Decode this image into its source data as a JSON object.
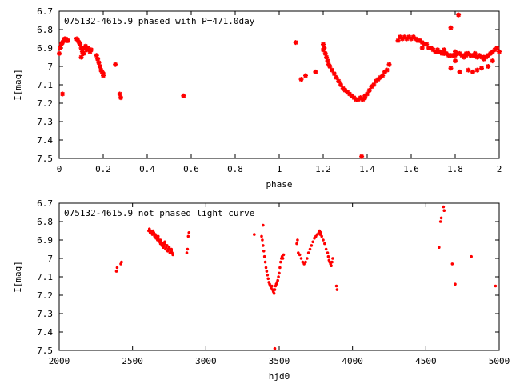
{
  "colors": {
    "points": "#ff0000",
    "axes": "#000000",
    "background": "#ffffff"
  },
  "chart_data": [
    {
      "type": "scatter",
      "title": "075132-4615.9 phased with P=471.0day",
      "xlabel": "phase",
      "ylabel": "I[mag]",
      "xlim": [
        0,
        2
      ],
      "ylim": [
        6.7,
        7.5
      ],
      "y_inverted": true,
      "grid": false,
      "x_ticks": [
        "0",
        "0.2",
        "0.4",
        "0.6",
        "0.8",
        "1",
        "1.2",
        "1.4",
        "1.6",
        "1.8",
        "2"
      ],
      "y_ticks": [
        "6.7",
        "6.8",
        "6.9",
        "7",
        "7.1",
        "7.2",
        "7.3",
        "7.4",
        "7.5"
      ],
      "marker": "star",
      "series": [
        {
          "x": [
            0.0,
            0.005,
            0.01,
            0.015,
            0.02,
            0.025,
            0.03,
            0.035,
            0.04,
            0.015,
            0.08,
            0.085,
            0.09,
            0.095,
            0.1,
            0.105,
            0.11,
            0.115,
            0.12,
            0.13,
            0.14,
            0.1,
            0.11,
            0.125,
            0.145,
            0.17,
            0.175,
            0.18,
            0.185,
            0.19,
            0.195,
            0.2,
            0.2,
            0.255,
            0.275,
            0.28,
            0.565,
            1.075,
            1.1,
            1.12,
            1.165,
            1.2,
            1.2,
            1.205,
            1.21,
            1.215,
            1.22,
            1.225,
            1.23,
            1.24,
            1.25,
            1.26,
            1.27,
            1.28,
            1.29,
            1.3,
            1.31,
            1.32,
            1.33,
            1.34,
            1.35,
            1.36,
            1.37,
            1.38,
            1.39,
            1.4,
            1.41,
            1.42,
            1.43,
            1.44,
            1.45,
            1.46,
            1.47,
            1.48,
            1.49,
            1.5,
            1.375,
            1.39,
            1.54,
            1.55,
            1.56,
            1.57,
            1.58,
            1.59,
            1.6,
            1.61,
            1.62,
            1.63,
            1.64,
            1.65,
            1.66,
            1.67,
            1.68,
            1.69,
            1.7,
            1.71,
            1.72,
            1.73,
            1.74,
            1.75,
            1.76,
            1.77,
            1.78,
            1.79,
            1.8,
            1.81,
            1.82,
            1.83,
            1.84,
            1.85,
            1.86,
            1.87,
            1.88,
            1.89,
            1.9,
            1.91,
            1.92,
            1.93,
            1.94,
            1.95,
            1.96,
            1.97,
            1.98,
            1.99,
            2.0,
            1.65,
            1.69,
            1.72,
            1.75,
            1.8,
            1.85,
            1.89,
            1.93,
            1.78,
            1.8,
            1.82,
            1.845,
            1.86,
            1.88,
            1.9,
            1.92,
            1.95,
            1.97,
            1.815,
            1.78
          ],
          "y": [
            6.93,
            6.9,
            6.88,
            6.87,
            6.86,
            6.85,
            6.85,
            6.86,
            6.86,
            7.15,
            6.85,
            6.86,
            6.87,
            6.88,
            6.9,
            6.92,
            6.93,
            6.9,
            6.89,
            6.9,
            6.92,
            6.95,
            6.93,
            6.91,
            6.91,
            6.94,
            6.96,
            6.98,
            7.0,
            7.02,
            7.03,
            7.04,
            7.05,
            6.99,
            7.15,
            7.17,
            7.16,
            6.87,
            7.07,
            7.05,
            7.03,
            6.88,
            6.91,
            6.9,
            6.93,
            6.95,
            6.97,
            6.99,
            7.0,
            7.02,
            7.04,
            7.06,
            7.08,
            7.1,
            7.12,
            7.13,
            7.14,
            7.15,
            7.16,
            7.17,
            7.18,
            7.18,
            7.17,
            7.18,
            7.16,
            7.15,
            7.13,
            7.11,
            7.1,
            7.08,
            7.07,
            7.06,
            7.05,
            7.03,
            7.02,
            6.99,
            7.49,
            7.17,
            6.86,
            6.84,
            6.85,
            6.84,
            6.85,
            6.84,
            6.85,
            6.84,
            6.85,
            6.86,
            6.86,
            6.87,
            6.88,
            6.88,
            6.9,
            6.9,
            6.91,
            6.92,
            6.92,
            6.92,
            6.93,
            6.93,
            6.93,
            6.94,
            6.94,
            6.94,
            6.94,
            6.93,
            6.93,
            6.94,
            6.95,
            6.94,
            6.93,
            6.94,
            6.94,
            6.93,
            6.95,
            6.94,
            6.95,
            6.96,
            6.95,
            6.94,
            6.93,
            6.92,
            6.91,
            6.9,
            6.92,
            6.9,
            6.9,
            6.91,
            6.91,
            6.92,
            6.93,
            6.94,
            6.95,
            7.01,
            6.97,
            7.03,
            6.94,
            7.02,
            7.03,
            7.02,
            7.01,
            7.0,
            6.97,
            6.72,
            6.79
          ]
        }
      ]
    },
    {
      "type": "scatter",
      "title": "075132-4615.9 not phased light curve",
      "xlabel": "hjd0",
      "ylabel": "I[mag]",
      "xlim": [
        2000,
        5000
      ],
      "ylim": [
        6.7,
        7.5
      ],
      "y_inverted": true,
      "grid": false,
      "x_ticks": [
        "2000",
        "2500",
        "3000",
        "3500",
        "4000",
        "4500",
        "5000"
      ],
      "y_ticks": [
        "6.7",
        "6.8",
        "6.9",
        "7",
        "7.1",
        "7.2",
        "7.3",
        "7.4",
        "7.5"
      ],
      "marker": "dot",
      "series": [
        {
          "x": [
            2390,
            2395,
            2420,
            2425,
            2610,
            2615,
            2620,
            2625,
            2630,
            2635,
            2640,
            2645,
            2650,
            2655,
            2660,
            2665,
            2670,
            2675,
            2680,
            2685,
            2690,
            2695,
            2700,
            2705,
            2710,
            2715,
            2720,
            2725,
            2730,
            2735,
            2740,
            2745,
            2750,
            2755,
            2760,
            2765,
            2770,
            2775,
            2675,
            2690,
            2705,
            2720,
            2735,
            2750,
            2765,
            2870,
            2875,
            2880,
            2885,
            3330,
            3380,
            3385,
            3390,
            3395,
            3400,
            3405,
            3410,
            3415,
            3420,
            3425,
            3430,
            3435,
            3440,
            3445,
            3450,
            3455,
            3460,
            3465,
            3470,
            3475,
            3480,
            3485,
            3490,
            3495,
            3500,
            3505,
            3510,
            3515,
            3520,
            3525,
            3530,
            3390,
            3620,
            3625,
            3630,
            3640,
            3650,
            3660,
            3670,
            3680,
            3690,
            3700,
            3710,
            3720,
            3730,
            3740,
            3750,
            3760,
            3770,
            3775,
            3780,
            3785,
            3790,
            3800,
            3810,
            3820,
            3830,
            3835,
            3840,
            3845,
            3850,
            3855,
            3860,
            3865,
            3890,
            3895,
            4590,
            4600,
            4605,
            4620,
            4625,
            4680,
            4700,
            4810,
            4975,
            3470
          ],
          "y": [
            7.07,
            7.05,
            7.03,
            7.02,
            6.85,
            6.84,
            6.86,
            6.85,
            6.86,
            6.87,
            6.85,
            6.86,
            6.88,
            6.87,
            6.89,
            6.88,
            6.9,
            6.89,
            6.9,
            6.91,
            6.92,
            6.91,
            6.93,
            6.92,
            6.94,
            6.93,
            6.92,
            6.95,
            6.94,
            6.93,
            6.96,
            6.95,
            6.94,
            6.97,
            6.96,
            6.95,
            6.97,
            6.98,
            6.88,
            6.9,
            6.92,
            6.91,
            6.93,
            6.95,
            6.96,
            6.97,
            6.95,
            6.88,
            6.86,
            6.87,
            6.88,
            6.9,
            6.93,
            6.96,
            6.99,
            7.02,
            7.05,
            7.07,
            7.09,
            7.11,
            7.13,
            7.14,
            7.15,
            7.16,
            7.15,
            7.17,
            7.18,
            7.19,
            7.17,
            7.15,
            7.14,
            7.13,
            7.12,
            7.1,
            7.08,
            7.05,
            7.02,
            7.0,
            6.99,
            7.0,
            6.98,
            6.82,
            6.92,
            6.9,
            6.97,
            6.98,
            7.0,
            7.02,
            7.03,
            7.02,
            7.0,
            6.97,
            6.95,
            6.93,
            6.91,
            6.89,
            6.88,
            6.87,
            6.86,
            6.85,
            6.87,
            6.86,
            6.88,
            6.9,
            6.92,
            6.95,
            6.97,
            6.99,
            7.01,
            7.02,
            7.03,
            7.04,
            7.02,
            7.0,
            7.15,
            7.17,
            6.94,
            6.8,
            6.78,
            6.72,
            6.74,
            7.03,
            7.14,
            6.99,
            7.15,
            7.49
          ]
        }
      ]
    }
  ]
}
